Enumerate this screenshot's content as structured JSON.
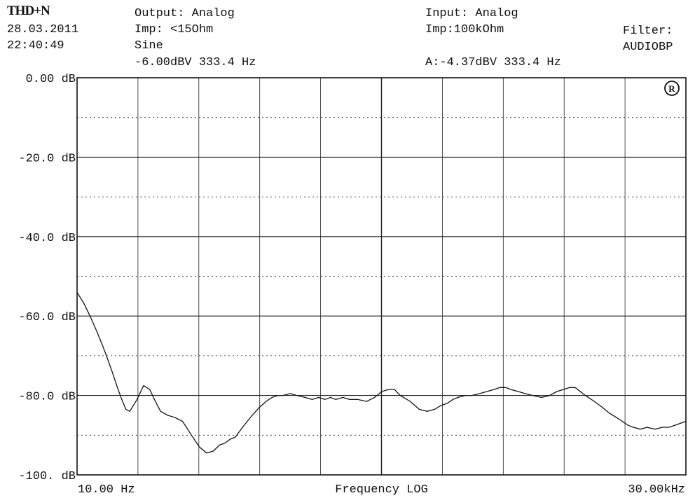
{
  "header": {
    "mode": "THD+N",
    "date": "28.03.2011",
    "time": "22:40:49",
    "output": "Output: Analog",
    "output_imp": "Imp: <15Ohm",
    "waveform": "Sine",
    "output_level": "-6.00dBV 333.4 Hz",
    "input": "Input: Analog",
    "input_imp": "Imp:100kOhm",
    "input_level": "A:-4.37dBV 333.4 Hz",
    "filter_label": "Filter:",
    "filter_value": "AUDIOBP"
  },
  "logo_icon": "circled-rs-logo-icon",
  "chart_data": {
    "type": "line",
    "x_scale": "log",
    "xlim": [
      10,
      30000
    ],
    "ylim": [
      -100,
      0
    ],
    "x_tick_labels": [
      "10.00 Hz",
      "30.00kHz"
    ],
    "xlabel": "Frequency LOG",
    "y_ticks": [
      0,
      -20,
      -40,
      -60,
      -80,
      -100
    ],
    "y_tick_labels": [
      "0.00 dB",
      "-20.0 dB",
      "-40.0 dB",
      "-60.0 dB",
      "-80.0 dB",
      "-100. dB"
    ],
    "grid": true,
    "series": [
      {
        "x": [
          10,
          11,
          12,
          13,
          14,
          15,
          16,
          17,
          18,
          19,
          20,
          22,
          24,
          26,
          28,
          30,
          33,
          36,
          40,
          45,
          50,
          55,
          60,
          65,
          70,
          75,
          80,
          90,
          100,
          110,
          120,
          130,
          140,
          150,
          165,
          180,
          200,
          220,
          240,
          260,
          280,
          300,
          330,
          360,
          400,
          450,
          500,
          550,
          600,
          650,
          700,
          800,
          900,
          1000,
          1100,
          1200,
          1300,
          1400,
          1500,
          1650,
          1800,
          2000,
          2200,
          2400,
          2600,
          2800,
          3000,
          3300,
          3600,
          4000,
          4500,
          5000,
          5500,
          6000,
          6500,
          7000,
          8000,
          9000,
          10000,
          11000,
          12000,
          13000,
          14000,
          15000,
          16500,
          18000,
          20000,
          22000,
          24000,
          26000,
          28000,
          30000
        ],
        "y": [
          -54,
          -57,
          -60.5,
          -64,
          -67.5,
          -71,
          -74.5,
          -78,
          -81,
          -83.5,
          -84,
          -81,
          -77.5,
          -78.5,
          -81.5,
          -84,
          -85,
          -85.5,
          -86.5,
          -90,
          -93,
          -94.5,
          -94,
          -92.5,
          -92,
          -91,
          -90.5,
          -87.5,
          -85,
          -83,
          -81.5,
          -80.5,
          -80,
          -80,
          -79.5,
          -80,
          -80.5,
          -81,
          -80.5,
          -81,
          -80.5,
          -81,
          -80.5,
          -81,
          -81,
          -81.5,
          -80.5,
          -79,
          -78.5,
          -78.5,
          -80,
          -81.5,
          -83.5,
          -84,
          -83.5,
          -82.5,
          -82,
          -81,
          -80.5,
          -80,
          -80,
          -79.5,
          -79,
          -78.5,
          -78,
          -78,
          -78.5,
          -79,
          -79.5,
          -80,
          -80.5,
          -80,
          -79,
          -78.5,
          -78,
          -78,
          -80,
          -81.5,
          -83,
          -84.5,
          -85.5,
          -86.5,
          -87.5,
          -88,
          -88.5,
          -88,
          -88.5,
          -88,
          -88,
          -87.5,
          -87,
          -86.5
        ]
      }
    ]
  }
}
